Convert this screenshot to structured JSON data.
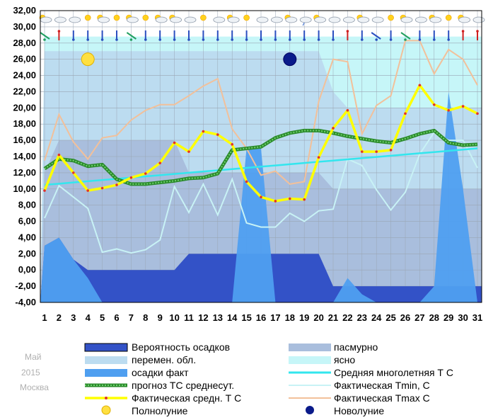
{
  "meta": {
    "month": "Май",
    "year": "2015",
    "city": "Москва"
  },
  "colors": {
    "precip_prob": "#3352c7",
    "precip_fact": "#4f9ff0",
    "overcast": "#a9bedd",
    "variable": "#bcdcf0",
    "clear": "#c6f6f8",
    "normal": "#33e6ee",
    "forecast": "#2a8a2a",
    "avg": "#ffff00",
    "tmin": "#c8f2f5",
    "tmax": "#f2c09a",
    "full_moon": "#ffe040",
    "new_moon": "#0a1a8a"
  },
  "chart_data": {
    "type": "line",
    "ylim": [
      -4,
      32
    ],
    "yticks": [
      "32,00",
      "30,00",
      "28,00",
      "26,00",
      "24,00",
      "22,00",
      "20,00",
      "18,00",
      "16,00",
      "14,00",
      "12,00",
      "10,00",
      "8,00",
      "6,00",
      "4,00",
      "2,00",
      "0,00",
      "-2,00",
      "-4,00"
    ],
    "ytick_values": [
      32,
      30,
      28,
      26,
      24,
      22,
      20,
      18,
      16,
      14,
      12,
      10,
      8,
      6,
      4,
      2,
      0,
      -2,
      -4
    ],
    "x": [
      1,
      2,
      3,
      4,
      5,
      6,
      7,
      8,
      9,
      10,
      11,
      12,
      13,
      14,
      15,
      16,
      17,
      18,
      19,
      20,
      21,
      22,
      23,
      24,
      25,
      26,
      27,
      28,
      29,
      30,
      31
    ],
    "xticks": [
      "1",
      "2",
      "3",
      "4",
      "5",
      "6",
      "7",
      "8",
      "9",
      "10",
      "11",
      "12",
      "13",
      "14",
      "15",
      "16",
      "17",
      "18",
      "19",
      "20",
      "21",
      "22",
      "23",
      "24",
      "25",
      "26",
      "27",
      "28",
      "29",
      "30",
      "31"
    ],
    "grid": true,
    "series": [
      {
        "name": "Фактическая Tmax C",
        "key": "tmax",
        "values": [
          13.5,
          19.2,
          15.8,
          13.7,
          16.3,
          16.6,
          18.5,
          19.7,
          20.4,
          20.4,
          21.5,
          22.7,
          23.6,
          17.4,
          15.0,
          11.7,
          12.2,
          10.6,
          10.9,
          20.8,
          26.0,
          25.7,
          16.8,
          20.3,
          21.5,
          28.3,
          28.3,
          24.2,
          27.2,
          26.0,
          22.8
        ]
      },
      {
        "name": "Фактическая Tmin, C",
        "key": "tmin",
        "values": [
          6.4,
          10.4,
          9.0,
          7.6,
          2.2,
          2.6,
          2.1,
          2.5,
          3.7,
          10.3,
          7.1,
          10.6,
          6.8,
          11.2,
          5.8,
          5.3,
          5.3,
          7.0,
          6.0,
          7.3,
          7.5,
          13.7,
          12.9,
          9.9,
          7.4,
          9.6,
          14.3,
          17.0,
          16.0,
          16.0,
          12.6
        ]
      },
      {
        "name": "Средняя многолетняя Т С",
        "key": "normal",
        "values": [
          10.5,
          10.65,
          10.8,
          10.95,
          11.1,
          11.25,
          11.4,
          11.55,
          11.7,
          11.85,
          12.0,
          12.15,
          12.3,
          12.45,
          12.6,
          12.75,
          12.9,
          13.05,
          13.2,
          13.35,
          13.5,
          13.65,
          13.8,
          13.95,
          14.1,
          14.25,
          14.4,
          14.55,
          14.7,
          14.85,
          15.0
        ]
      },
      {
        "name": "прогноз ТС среднесут.",
        "key": "forecast",
        "values": [
          12.5,
          13.7,
          13.5,
          12.8,
          13.0,
          11.2,
          10.6,
          10.6,
          10.8,
          11.0,
          11.3,
          11.4,
          11.9,
          14.8,
          15.0,
          15.2,
          16.3,
          16.9,
          17.2,
          17.2,
          16.9,
          16.5,
          16.2,
          15.9,
          15.7,
          16.2,
          16.8,
          17.2,
          15.7,
          15.4,
          15.5
        ]
      },
      {
        "name": "Фактическая средн. Т С",
        "key": "avg",
        "values": [
          9.8,
          14.2,
          12.0,
          9.8,
          10.1,
          10.5,
          11.4,
          11.9,
          13.2,
          15.7,
          14.6,
          17.1,
          16.7,
          15.5,
          10.9,
          9.0,
          8.5,
          8.8,
          8.7,
          13.9,
          17.5,
          19.7,
          14.6,
          14.6,
          14.8,
          19.3,
          22.8,
          20.4,
          19.7,
          20.2,
          19.3
        ]
      }
    ],
    "precip_prob": [
      3,
      4,
      1.3,
      0,
      0,
      0,
      0,
      0,
      0,
      0,
      2,
      2,
      2,
      2,
      2,
      2,
      2,
      2,
      2,
      2,
      -2,
      -2,
      -2,
      -2,
      -2,
      -2,
      -2,
      -2,
      -2,
      -2,
      -2
    ],
    "precip_fact": [
      3,
      4,
      1.3,
      -1,
      -4.5,
      -4.5,
      -4.5,
      -4.5,
      -4.5,
      -4.5,
      -4.5,
      -4.5,
      -4.5,
      -4.5,
      15,
      15,
      -4.5,
      -4.5,
      -4.5,
      -4.5,
      -4.5,
      -1,
      -3,
      -4,
      -4.5,
      -4.5,
      -4.5,
      -2,
      22,
      10,
      -4.5
    ],
    "overcast": [
      12,
      16,
      16,
      16,
      16,
      16,
      16,
      16,
      16,
      16,
      12,
      12,
      12,
      12,
      12,
      12,
      12,
      12,
      12,
      12,
      10,
      10,
      10,
      10,
      10,
      10,
      10,
      10,
      10,
      10,
      10
    ],
    "variable": [
      27,
      27,
      27,
      27,
      27,
      27,
      27,
      27,
      27,
      27,
      27,
      27,
      27,
      27,
      27,
      27,
      27,
      27,
      27,
      27,
      22,
      20,
      20,
      20,
      20,
      20,
      20,
      20,
      20,
      20,
      20
    ],
    "clear": [
      28.8,
      28.8,
      28.8,
      28.8,
      28.8,
      28.8,
      28.8,
      28.8,
      28.8,
      28.8,
      28.8,
      28.8,
      28.8,
      28.8,
      28.8,
      28.8,
      28.8,
      28.8,
      28.8,
      28.8,
      28.8,
      28.8,
      28.8,
      28.8,
      28.8,
      28.8,
      28.8,
      28.8,
      28.8,
      28.8,
      28.8
    ],
    "full_moon": {
      "day": 4,
      "y": 26
    },
    "new_moon": {
      "day": 18,
      "y": 26
    },
    "weather_icons": [
      "cloud-sun",
      "cloud",
      "cloud",
      "sun",
      "cloud-sun",
      "sun",
      "cloud-sun",
      "sun",
      "cloud-sun",
      "cloud-sun",
      "cloud",
      "sun",
      "cloud",
      "cloud-sun",
      "sun",
      "cloud",
      "cloud",
      "cloud-sun",
      "cloud-rain",
      "cloud-sun",
      "cloud",
      "cloud",
      "cloud-sun",
      "cloud",
      "sun",
      "cloud-sun",
      "cloud",
      "cloud-sun",
      "sun",
      "cloud-sun",
      "cloud"
    ],
    "wind_icons": [
      "arrow-left",
      "arrow-up",
      "arrow-down",
      "arrow-down",
      "arrow-down",
      "arrow-down",
      "arrow-left",
      "arrow-down",
      "arrow-down",
      "arrow-down",
      "arrow-down",
      "arrow-down",
      "arrow-down",
      "arrow-down",
      "arrow-down",
      "arrow-down",
      "arrow-down",
      "arrow-down",
      "arrow-down",
      "arrow-down",
      "arrow-down",
      "arrow-up",
      "arrow-down",
      "arrow-right",
      "arrow-down",
      "arrow-left",
      "arrow-down",
      "arrow-down",
      "arrow-down",
      "arrow-up",
      "arrow-up"
    ]
  },
  "legend": {
    "precip_prob": "Вероятность осадков",
    "overcast": "пасмурно",
    "variable": "перемен. обл.",
    "clear": "ясно",
    "precip_fact": "осадки факт",
    "normal": "Средняя многолетняя Т С",
    "forecast": "прогноз ТС среднесут.",
    "tmin": "Фактическая Tmin, C",
    "avg": "Фактическая средн. Т С",
    "tmax": "Фактическая Tmax C",
    "full_moon": "Полнолуние",
    "new_moon": "Новолуние"
  }
}
